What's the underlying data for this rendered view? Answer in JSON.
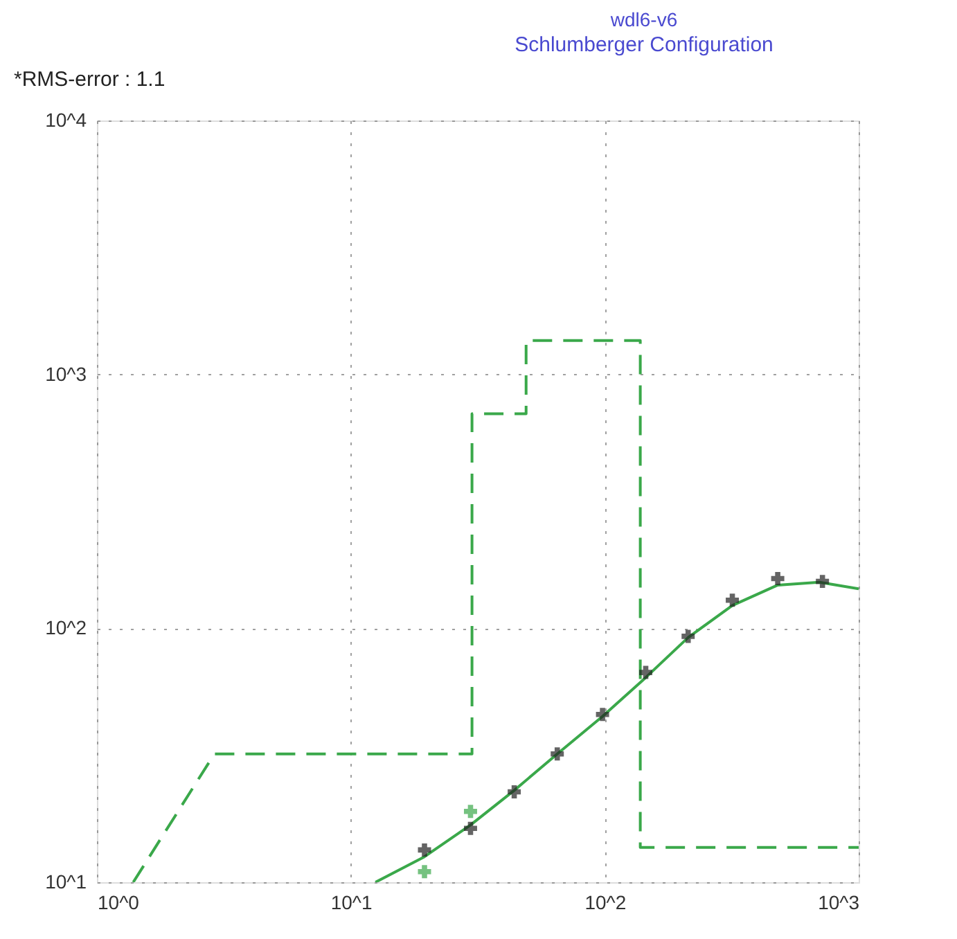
{
  "chart_data": {
    "type": "line",
    "title": "wdl6-v6",
    "subtitle": "Schlumberger Configuration",
    "annotations": [
      "*RMS-error :  1.1"
    ],
    "log": "xy",
    "grid": true,
    "xlim": [
      1,
      1000
    ],
    "ylim": [
      10,
      10000
    ],
    "xticks": [
      {
        "value": 1,
        "label": "10^0"
      },
      {
        "value": 10,
        "label": "10^1"
      },
      {
        "value": 100,
        "label": "10^2"
      },
      {
        "value": 1000,
        "label": "10^3"
      }
    ],
    "yticks": [
      {
        "value": 10,
        "label": "10^1"
      },
      {
        "value": 100,
        "label": "10^2"
      },
      {
        "value": 1000,
        "label": "10^3"
      },
      {
        "value": 10000,
        "label": "10^4"
      }
    ],
    "series": [
      {
        "color": "#3aa84a",
        "line_style": "dashed",
        "marker": "none",
        "x": [
          1.39,
          2.9,
          30,
          30,
          49,
          49,
          138,
          138,
          1000
        ],
        "values": [
          10,
          32,
          32,
          700,
          700,
          1360,
          1360,
          13.7,
          13.7
        ]
      },
      {
        "color": "#3aa84a",
        "line_style": "solid",
        "marker": "none",
        "x": [
          12.5,
          19.5,
          29.6,
          44,
          65,
          98,
          145,
          213,
          318,
          480,
          700,
          1000
        ],
        "values": [
          10,
          12.6,
          16.8,
          23,
          32,
          45,
          64,
          92,
          123,
          148,
          152,
          143
        ]
      },
      {
        "type": "scatter",
        "color": "#222222",
        "marker": "cross",
        "x": [
          19.5,
          29.6,
          44,
          65,
          98,
          145,
          213,
          318,
          480,
          720
        ],
        "values": [
          13.4,
          16.3,
          22.7,
          32,
          45.8,
          67,
          93,
          129,
          157,
          153
        ]
      },
      {
        "type": "scatter",
        "color": "#3aa84a",
        "marker": "cross",
        "x": [
          19.5,
          29.6
        ],
        "values": [
          11,
          19
        ]
      }
    ]
  }
}
